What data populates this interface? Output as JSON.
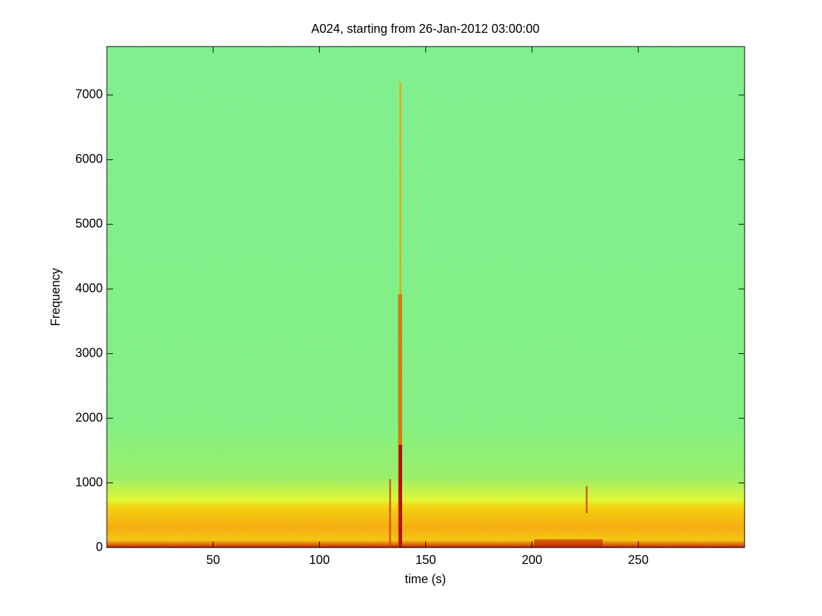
{
  "chart_data": {
    "type": "spectrogram",
    "title": "A024, starting from 26-Jan-2012 03:00:00",
    "xlabel": "time (s)",
    "ylabel": "Frequency",
    "xlim": [
      0,
      300
    ],
    "xticks": [
      50,
      100,
      150,
      200,
      250
    ],
    "ylim": [
      0,
      7750
    ],
    "yticks": [
      0,
      1000,
      2000,
      3000,
      4000,
      5000,
      6000,
      7000
    ]
  }
}
